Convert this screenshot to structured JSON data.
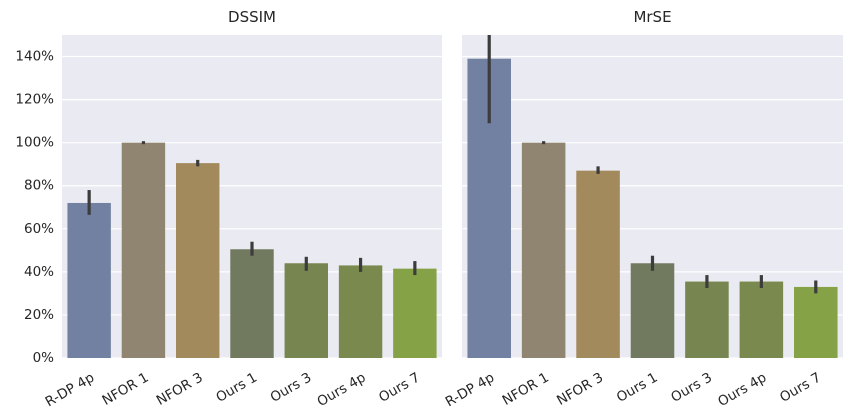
{
  "chart_data": [
    {
      "type": "bar",
      "title": "DSSIM",
      "categories": [
        "R-DP 4p",
        "NFOR 1",
        "NFOR 3",
        "Ours 1",
        "Ours 3",
        "Ours 4p",
        "Ours 7"
      ],
      "values": [
        72,
        100,
        90.5,
        50.5,
        44,
        43,
        41.5
      ],
      "error_low": [
        66.5,
        99.3,
        89,
        47.5,
        40.5,
        40,
        38.5
      ],
      "error_high": [
        78,
        100.7,
        92,
        54,
        47,
        46.5,
        45
      ],
      "colors": [
        "#7281a1",
        "#8f8570",
        "#a38a5c",
        "#717a5f",
        "#778651",
        "#7a8a4e",
        "#86a246"
      ],
      "ylim": [
        0,
        150
      ],
      "yticks": [
        0,
        20,
        40,
        60,
        80,
        100,
        120,
        140
      ],
      "ytick_labels": [
        "0%",
        "20%",
        "40%",
        "60%",
        "80%",
        "100%",
        "120%",
        "140%"
      ],
      "grid": true
    },
    {
      "type": "bar",
      "title": "MrSE",
      "categories": [
        "R-DP 4p",
        "NFOR 1",
        "NFOR 3",
        "Ours 1",
        "Ours 3",
        "Ours 4p",
        "Ours 7"
      ],
      "values": [
        139,
        100,
        87,
        44,
        35.5,
        35.5,
        33
      ],
      "error_low": [
        109,
        99.3,
        85.5,
        40.5,
        32.5,
        32.5,
        30
      ],
      "error_high": [
        150,
        100.7,
        89,
        47.5,
        38.5,
        38.5,
        36
      ],
      "colors": [
        "#7281a1",
        "#8f8570",
        "#a38a5c",
        "#717a5f",
        "#778651",
        "#7a8a4e",
        "#86a246"
      ],
      "ylim": [
        0,
        150
      ],
      "yticks": [
        0,
        20,
        40,
        60,
        80,
        100,
        120,
        140
      ],
      "ytick_labels": [],
      "grid": true
    }
  ]
}
